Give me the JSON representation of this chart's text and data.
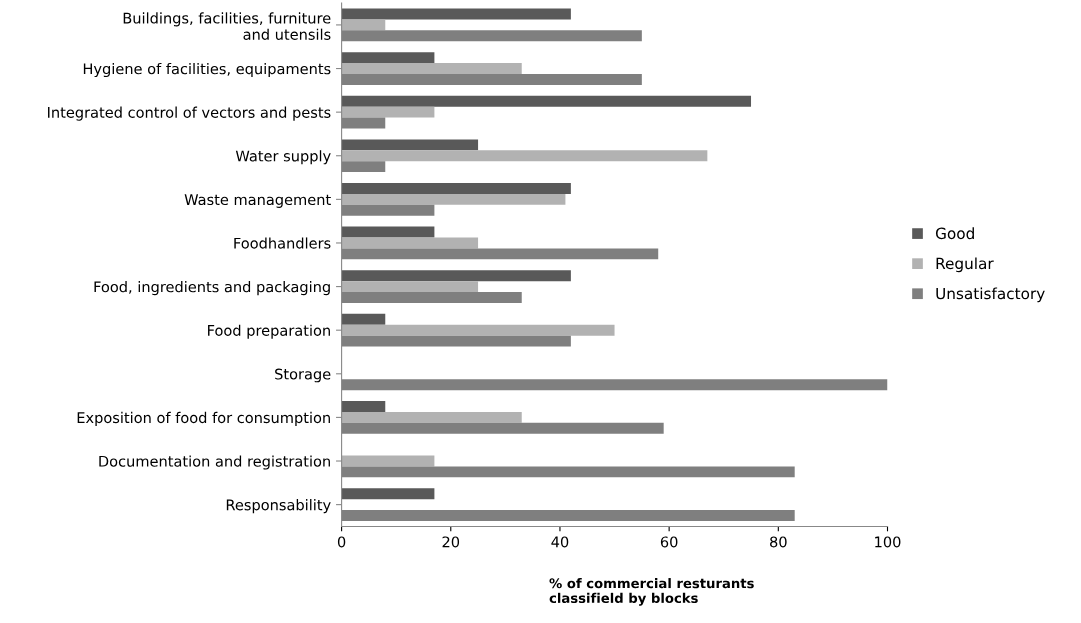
{
  "chart_data": {
    "type": "bar",
    "orientation": "horizontal",
    "xlabel": "% of commercial resturants\nclassifield by blocks",
    "categories": [
      "Buildings, facilities, furniture\nand utensils",
      "Hygiene of facilities, equipaments",
      "Integrated control of vectors and pests",
      "Water supply",
      "Waste management",
      "Foodhandlers",
      "Food, ingredients and packaging",
      "Food preparation",
      "Storage",
      "Exposition of food for consumption",
      "Documentation and registration",
      "Responsability"
    ],
    "series": [
      {
        "name": "Good",
        "color": "#595959",
        "values": [
          42,
          17,
          75,
          25,
          42,
          17,
          42,
          8,
          0,
          8,
          0,
          17
        ]
      },
      {
        "name": "Regular",
        "color": "#b2b2b2",
        "values": [
          8,
          33,
          17,
          67,
          41,
          25,
          25,
          50,
          0,
          33,
          17,
          0
        ]
      },
      {
        "name": "Unsatisfactory",
        "color": "#7f7f7f",
        "values": [
          55,
          55,
          8,
          8,
          17,
          58,
          33,
          42,
          100,
          59,
          83,
          83
        ]
      }
    ],
    "xlim": [
      0,
      100
    ],
    "xticks": [
      0,
      20,
      40,
      60,
      80,
      100
    ],
    "grid": false,
    "legend": "right"
  }
}
